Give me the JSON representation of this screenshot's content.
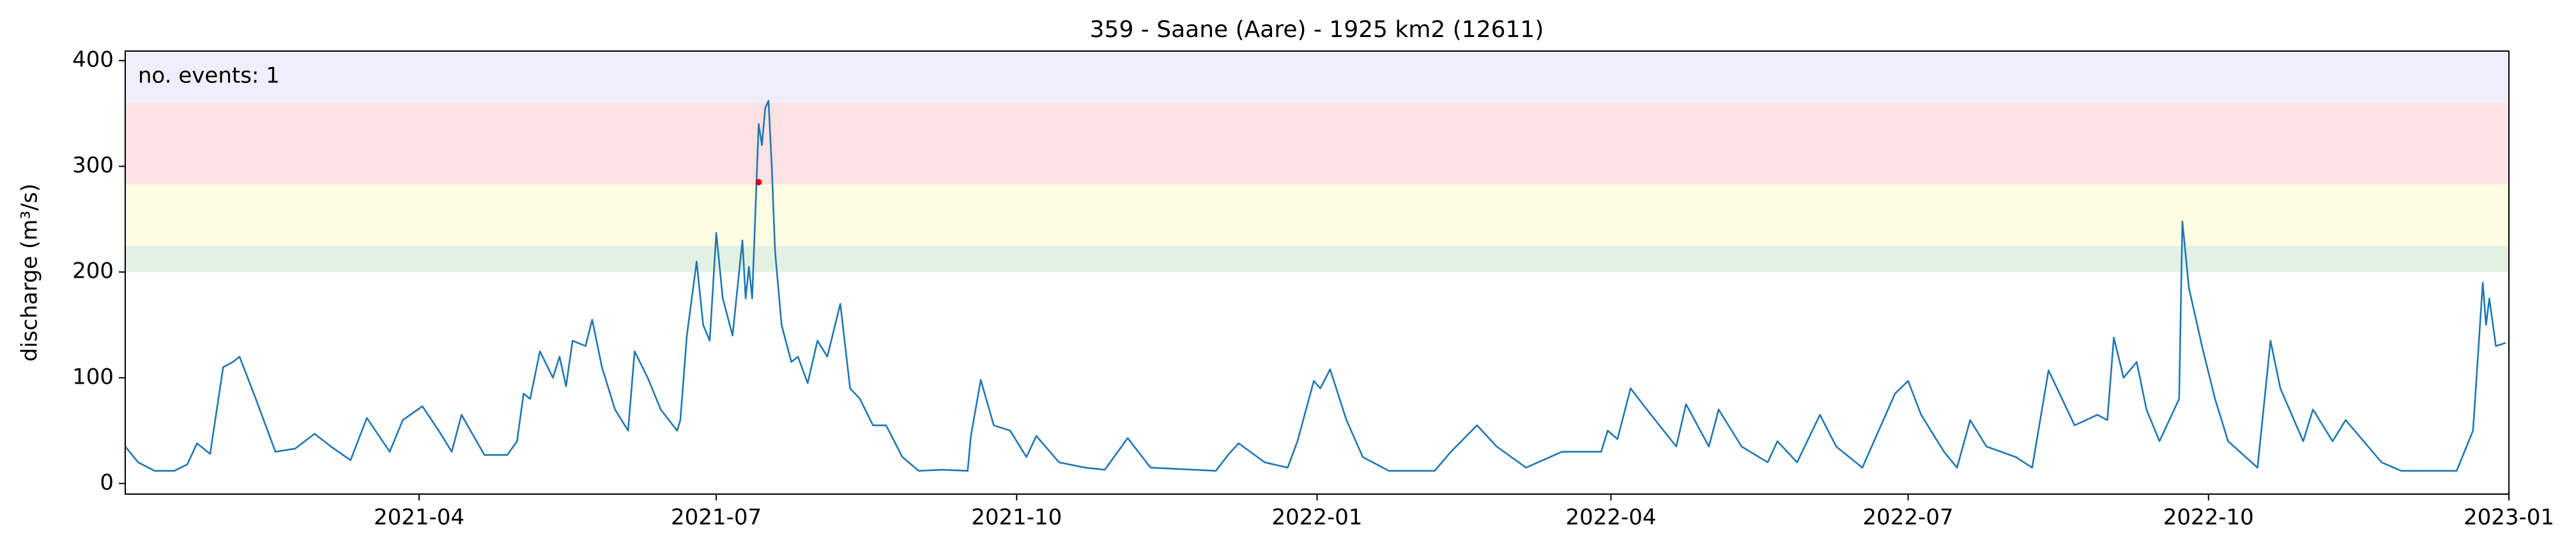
{
  "chart_data": {
    "type": "line",
    "title": "359 - Saane (Aare) - 1925 km2 (12611)",
    "ylabel": "discharge (m³/s)",
    "annotation": "no. events: 1",
    "annotation_color": "#e00000",
    "x": [
      "2021-01-01",
      "2021-01-05",
      "2021-01-10",
      "2021-01-16",
      "2021-01-20",
      "2021-01-23",
      "2021-01-27",
      "2021-01-31",
      "2021-02-03",
      "2021-02-05",
      "2021-02-10",
      "2021-02-16",
      "2021-02-22",
      "2021-02-28",
      "2021-03-05",
      "2021-03-11",
      "2021-03-16",
      "2021-03-23",
      "2021-03-27",
      "2021-04-02",
      "2021-04-07",
      "2021-04-11",
      "2021-04-14",
      "2021-04-21",
      "2021-04-28",
      "2021-05-01",
      "2021-05-03",
      "2021-05-05",
      "2021-05-08",
      "2021-05-12",
      "2021-05-14",
      "2021-05-16",
      "2021-05-18",
      "2021-05-22",
      "2021-05-24",
      "2021-05-27",
      "2021-05-31",
      "2021-06-04",
      "2021-06-06",
      "2021-06-10",
      "2021-06-14",
      "2021-06-19",
      "2021-06-20",
      "2021-06-22",
      "2021-06-25",
      "2021-06-27",
      "2021-06-29",
      "2021-07-01",
      "2021-07-03",
      "2021-07-06",
      "2021-07-09",
      "2021-07-10",
      "2021-07-11",
      "2021-07-12",
      "2021-07-14",
      "2021-07-15",
      "2021-07-16",
      "2021-07-17",
      "2021-07-18",
      "2021-07-19",
      "2021-07-21",
      "2021-07-24",
      "2021-07-26",
      "2021-07-29",
      "2021-08-01",
      "2021-08-04",
      "2021-08-08",
      "2021-08-11",
      "2021-08-14",
      "2021-08-18",
      "2021-08-22",
      "2021-08-27",
      "2021-09-01",
      "2021-09-08",
      "2021-09-16",
      "2021-09-17",
      "2021-09-20",
      "2021-09-24",
      "2021-09-29",
      "2021-10-04",
      "2021-10-07",
      "2021-10-14",
      "2021-10-22",
      "2021-10-28",
      "2021-11-04",
      "2021-11-11",
      "2021-12-01",
      "2021-12-05",
      "2021-12-08",
      "2021-12-16",
      "2021-12-23",
      "2021-12-26",
      "2021-12-31",
      "2022-01-02",
      "2022-01-05",
      "2022-01-10",
      "2022-01-15",
      "2022-01-23",
      "2022-02-06",
      "2022-02-11",
      "2022-02-19",
      "2022-02-25",
      "2022-03-06",
      "2022-03-17",
      "2022-03-29",
      "2022-03-31",
      "2022-04-03",
      "2022-04-07",
      "2022-04-12",
      "2022-04-21",
      "2022-04-24",
      "2022-05-01",
      "2022-05-04",
      "2022-05-11",
      "2022-05-19",
      "2022-05-22",
      "2022-05-28",
      "2022-06-04",
      "2022-06-09",
      "2022-06-17",
      "2022-06-27",
      "2022-07-01",
      "2022-07-05",
      "2022-07-12",
      "2022-07-16",
      "2022-07-20",
      "2022-07-25",
      "2022-08-03",
      "2022-08-08",
      "2022-08-13",
      "2022-08-21",
      "2022-08-28",
      "2022-08-31",
      "2022-09-02",
      "2022-09-05",
      "2022-09-09",
      "2022-09-12",
      "2022-09-16",
      "2022-09-22",
      "2022-09-23",
      "2022-09-25",
      "2022-09-29",
      "2022-10-03",
      "2022-10-07",
      "2022-10-16",
      "2022-10-20",
      "2022-10-23",
      "2022-10-30",
      "2022-11-02",
      "2022-11-08",
      "2022-11-12",
      "2022-11-23",
      "2022-11-29",
      "2022-12-16",
      "2022-12-21",
      "2022-12-24",
      "2022-12-25",
      "2022-12-26",
      "2022-12-28",
      "2022-12-31"
    ],
    "series": [
      {
        "name": "discharge",
        "color": "#1f77b4",
        "values": [
          35,
          20,
          12,
          12,
          18,
          38,
          28,
          110,
          115,
          120,
          80,
          30,
          33,
          47,
          35,
          22,
          62,
          30,
          60,
          73,
          50,
          30,
          65,
          27,
          27,
          40,
          85,
          80,
          125,
          100,
          120,
          92,
          135,
          130,
          155,
          110,
          70,
          50,
          125,
          100,
          70,
          50,
          60,
          140,
          210,
          150,
          135,
          237,
          175,
          140,
          230,
          175,
          205,
          175,
          340,
          320,
          355,
          362,
          300,
          220,
          150,
          115,
          120,
          95,
          135,
          120,
          170,
          90,
          80,
          55,
          55,
          25,
          12,
          13,
          12,
          45,
          98,
          55,
          50,
          25,
          45,
          20,
          15,
          13,
          43,
          15,
          12,
          28,
          38,
          20,
          15,
          40,
          97,
          90,
          108,
          60,
          25,
          12,
          12,
          30,
          55,
          35,
          15,
          30,
          30,
          50,
          42,
          90,
          70,
          35,
          75,
          35,
          70,
          35,
          20,
          40,
          20,
          65,
          35,
          15,
          85,
          97,
          65,
          30,
          15,
          60,
          35,
          25,
          15,
          107,
          55,
          65,
          60,
          138,
          100,
          115,
          70,
          40,
          80,
          248,
          185,
          130,
          80,
          40,
          15,
          135,
          90,
          40,
          70,
          40,
          60,
          20,
          12,
          12,
          50,
          190,
          150,
          175,
          130,
          133
        ]
      }
    ],
    "bands": [
      {
        "from": 200,
        "to": 225,
        "color": "#e3f1e3"
      },
      {
        "from": 225,
        "to": 283,
        "color": "#fefde3"
      },
      {
        "from": 283,
        "to": 360,
        "color": "#fde2e4"
      },
      {
        "from": 360,
        "to": 409,
        "color": "#f0eefa"
      }
    ],
    "events": [
      {
        "x": "2021-07-14",
        "value": 285,
        "color": "#e00000"
      }
    ],
    "xlim": [
      "2021-01-01",
      "2023-01-01"
    ],
    "xticks": [
      {
        "value": "2021-04-01",
        "label": "2021-04"
      },
      {
        "value": "2021-07-01",
        "label": "2021-07"
      },
      {
        "value": "2021-10-01",
        "label": "2021-10"
      },
      {
        "value": "2022-01-01",
        "label": "2022-01"
      },
      {
        "value": "2022-04-01",
        "label": "2022-04"
      },
      {
        "value": "2022-07-01",
        "label": "2022-07"
      },
      {
        "value": "2022-10-01",
        "label": "2022-10"
      },
      {
        "value": "2023-01-01",
        "label": "2023-01"
      }
    ],
    "ylim": [
      -10,
      409
    ],
    "yticks": [
      0,
      100,
      200,
      300,
      400
    ]
  }
}
